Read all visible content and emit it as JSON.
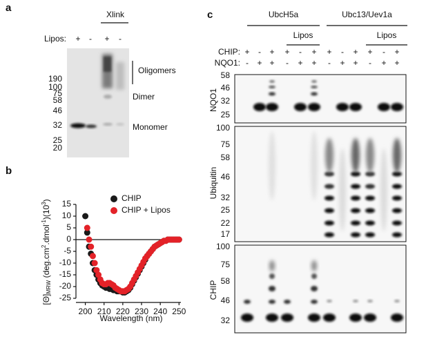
{
  "panel_a": {
    "label": "a",
    "lipos_label": "Lipos:",
    "lipos_signs": [
      "+",
      "-",
      "+",
      "-"
    ],
    "xlink_label": "Xlink",
    "markers": [
      190,
      100,
      75,
      58,
      46,
      32,
      25,
      20
    ],
    "annotations": [
      "Oligomers",
      "Dimer",
      "Monomer"
    ]
  },
  "chart_data": {
    "type": "scatter",
    "panel_label": "b",
    "xlabel": "Wavelength (nm)",
    "ylabel": [
      "[Θ]",
      "MRW",
      " (deg.cm",
      "2",
      ".dmol",
      "-1",
      ")(10",
      "3",
      ")"
    ],
    "xlim": [
      195,
      251
    ],
    "ylim": [
      -25,
      15
    ],
    "xticks": [
      200,
      210,
      220,
      230,
      240,
      250
    ],
    "yticks": [
      15,
      10,
      5,
      0,
      -5,
      -10,
      -15,
      -20,
      -25
    ],
    "zero_line": true,
    "legend": "upper right",
    "series": [
      {
        "name": "CHIP",
        "color": "#1a1a1a",
        "x": [
          200,
          201,
          202,
          203,
          204,
          205,
          206,
          207,
          208,
          209,
          210,
          211,
          212,
          213,
          214,
          215,
          216,
          217,
          218,
          219,
          220,
          221,
          222,
          223,
          224,
          225,
          226,
          227,
          228,
          229,
          230,
          231,
          232,
          233,
          234,
          235,
          236,
          237,
          238,
          239,
          240,
          241,
          242,
          243,
          244,
          245,
          246,
          247,
          248,
          249,
          250
        ],
        "values": [
          10,
          3,
          -3,
          -6,
          -10,
          -13,
          -15,
          -17,
          -18.5,
          -19.5,
          -20,
          -20.5,
          -20.5,
          -21,
          -21,
          -21.5,
          -21.5,
          -22,
          -22,
          -22,
          -22.5,
          -22.5,
          -22,
          -21.5,
          -20.5,
          -19,
          -17.5,
          -16,
          -14.5,
          -13,
          -11.5,
          -10,
          -8.5,
          -7,
          -6,
          -5,
          -4,
          -3,
          -2.5,
          -2,
          -1.5,
          -1,
          -0.5,
          -0.5,
          0,
          0,
          0,
          0,
          0,
          0,
          0
        ]
      },
      {
        "name": "CHIP + Lipos",
        "color": "#e32228",
        "x": [
          201,
          202,
          203,
          204,
          205,
          206,
          207,
          208,
          209,
          210,
          211,
          212,
          213,
          214,
          215,
          216,
          217,
          218,
          219,
          220,
          221,
          222,
          223,
          224,
          225,
          226,
          227,
          228,
          229,
          230,
          231,
          232,
          233,
          234,
          235,
          236,
          237,
          238,
          239,
          240,
          241,
          242,
          243,
          244,
          245,
          246,
          247,
          248,
          249,
          250
        ],
        "values": [
          5,
          0,
          -3,
          -7,
          -10,
          -13,
          -15,
          -17,
          -18.5,
          -19,
          -19,
          -18.5,
          -18.5,
          -19,
          -19.5,
          -20.5,
          -21,
          -21.5,
          -22,
          -22,
          -22,
          -21.5,
          -21,
          -20,
          -18.5,
          -17,
          -15.5,
          -14,
          -12.5,
          -11,
          -9.5,
          -8,
          -7,
          -6,
          -5,
          -4,
          -3,
          -2.5,
          -2,
          -1.5,
          -1,
          -0.5,
          -0.5,
          0,
          0,
          0,
          0,
          0,
          0,
          0
        ]
      }
    ]
  },
  "panel_c": {
    "label": "c",
    "groups": [
      "UbcH5a",
      "Ubc13/Uev1a"
    ],
    "lipos_labels": [
      "Lipos",
      "Lipos"
    ],
    "rows": [
      {
        "label": "CHIP:",
        "signs": [
          "+",
          "-",
          "+",
          "+",
          "-",
          "+",
          "+",
          "-",
          "+",
          "+",
          "-",
          "+"
        ]
      },
      {
        "label": "NQO1:",
        "signs": [
          "-",
          "+",
          "+",
          "-",
          "+",
          "+",
          "-",
          "+",
          "+",
          "-",
          "+",
          "+"
        ]
      }
    ],
    "blots": [
      {
        "label": "NQO1",
        "markers": [
          58,
          46,
          32,
          25
        ]
      },
      {
        "label": "Ubiquitin",
        "markers": [
          100,
          75,
          58,
          46,
          32,
          25,
          22,
          17
        ]
      },
      {
        "label": "CHIP",
        "markers": [
          100,
          75,
          58,
          46,
          32
        ]
      }
    ]
  }
}
